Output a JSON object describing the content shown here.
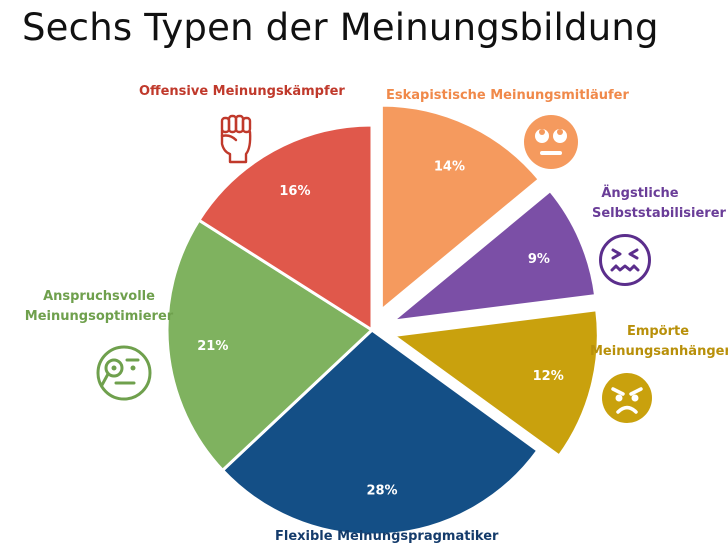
{
  "title": "Sechs Typen der Meinungsbildung",
  "colors": {
    "offensive": "#e0584b",
    "eskapistische": "#f59a5e",
    "aengstliche": "#7b4fa6",
    "empoerte": "#c9a10d",
    "flexible": "#144f86",
    "anspruchsvolle": "#7fb25f"
  },
  "chart_data": {
    "type": "pie",
    "title": "Sechs Typen der Meinungsbildung",
    "slices": [
      {
        "label": "Eskapistische Meinungsmitläufer",
        "value": 14,
        "value_label": "14%",
        "color": "#f59a5e",
        "exploded": true,
        "icon": "rolling-eyes-face-icon"
      },
      {
        "label": "Ängstliche Selbststabilisierer",
        "value": 9,
        "value_label": "9%",
        "color": "#7b4fa6",
        "exploded": true,
        "icon": "anxious-face-icon"
      },
      {
        "label": "Empörte Meinungsanhänger",
        "value": 12,
        "value_label": "12%",
        "color": "#c9a10d",
        "exploded": true,
        "icon": "angry-face-icon"
      },
      {
        "label": "Flexible Meinungspragmatiker",
        "value": 28,
        "value_label": "28%",
        "color": "#144f86",
        "exploded": false,
        "icon": ""
      },
      {
        "label": "Anspruchsvolle Meinungsoptimierer",
        "value": 21,
        "value_label": "21%",
        "color": "#7fb25f",
        "exploded": false,
        "icon": "monocle-face-icon"
      },
      {
        "label": "Offensive Meinungskämpfer",
        "value": 16,
        "value_label": "16%",
        "color": "#e0584b",
        "exploded": false,
        "icon": "raised-fist-icon"
      }
    ]
  },
  "labels": {
    "offensive": "Offensive Meinungskämpfer",
    "eskapistische": "Eskapistische Meinungsmitläufer",
    "aengstliche_1": "Ängstliche",
    "aengstliche_2": "Selbststabilisierer",
    "empoerte_1": "Empörte",
    "empoerte_2": "Meinungsanhänger",
    "flexible": "Flexible Meinungspragmatiker",
    "anspruchsvolle_1": "Anspruchsvolle",
    "anspruchsvolle_2": "Meinungsoptimierer"
  }
}
